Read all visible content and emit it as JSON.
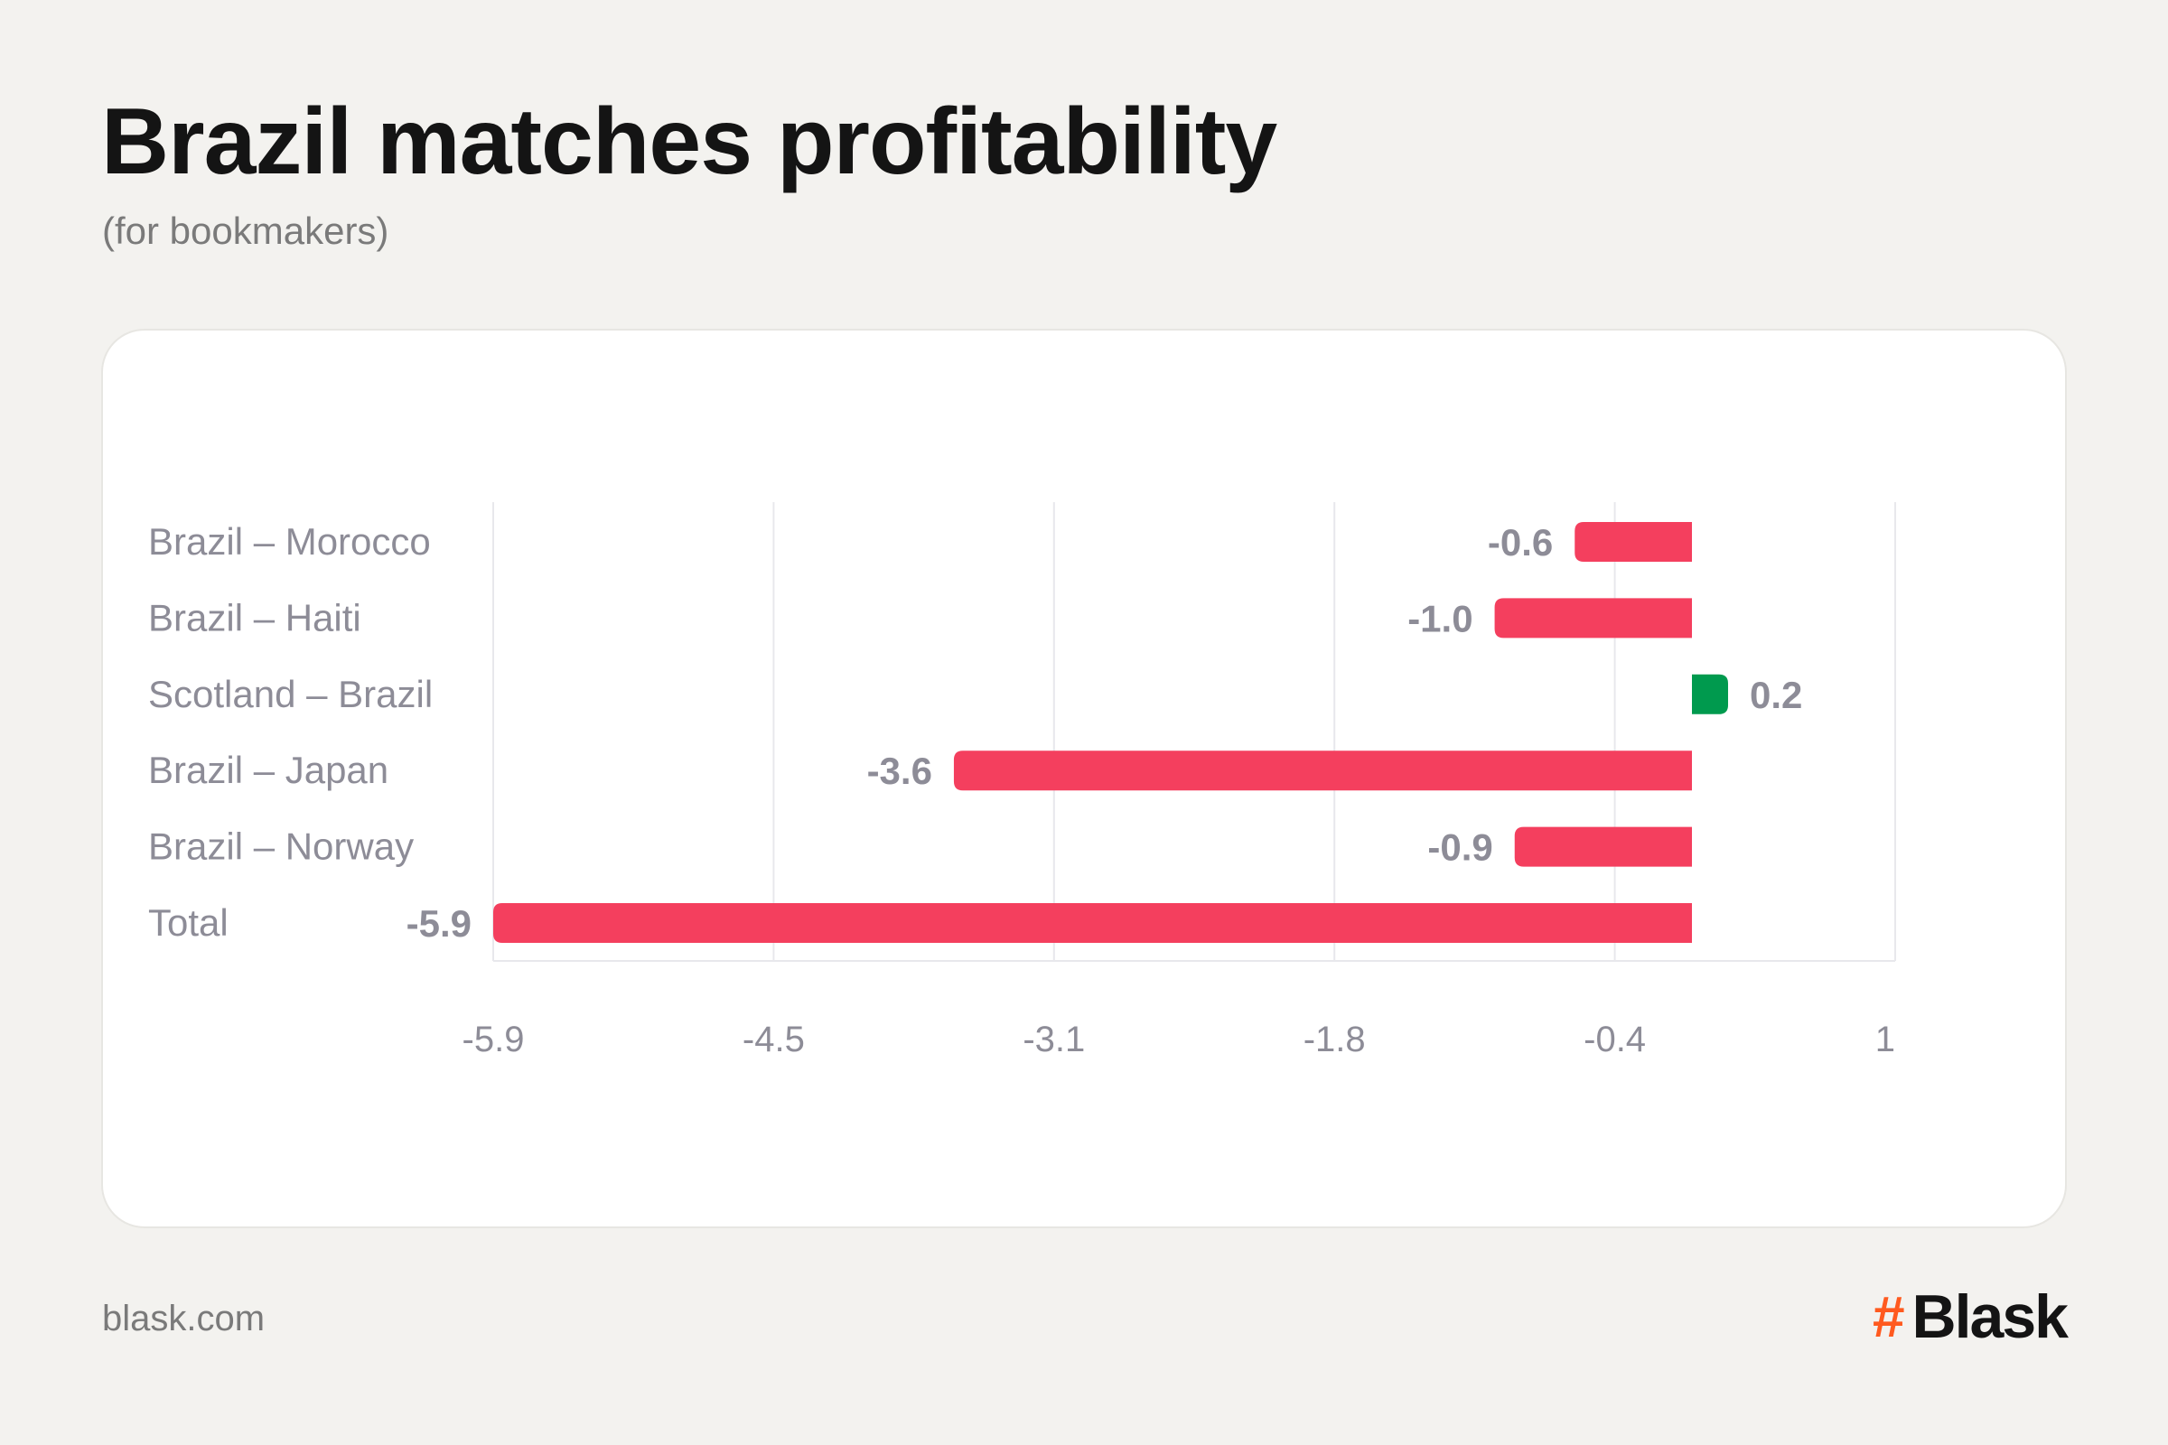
{
  "header": {
    "title": "Brazil matches profitability",
    "subtitle": "(for bookmakers)"
  },
  "footer": {
    "url": "blask.com",
    "brand_mark": "#",
    "brand_name": "Blask"
  },
  "colors": {
    "positive": "#009a4e",
    "negative": "#f43f5e",
    "value_label": "#8d8c97",
    "category_label": "#8d8c97",
    "tick_label": "#8d8c97",
    "grid": "#e8e8ec",
    "brand_accent": "#ff5a1f"
  },
  "chart_data": {
    "type": "bar",
    "orientation": "horizontal",
    "categories": [
      "Brazil – Morocco",
      "Brazil – Haiti",
      "Scotland – Brazil",
      "Brazil – Japan",
      "Brazil – Norway",
      "Total"
    ],
    "values": [
      -0.6,
      -1.0,
      0.2,
      -3.6,
      -0.9,
      -5.9
    ],
    "value_labels": [
      "-0.6",
      "-1.0",
      "0.2",
      "-3.6",
      "-0.9",
      "-5.9"
    ],
    "x_ticks": [
      -5.9,
      -4.5,
      -3.1,
      -1.8,
      -0.4,
      1
    ],
    "x_tick_labels": [
      "-5.9",
      "-4.5",
      "-3.1",
      "-1.8",
      "-0.4",
      "1"
    ],
    "xlim": [
      -5.9,
      1
    ],
    "title": "Brazil matches profitability",
    "subtitle": "(for bookmakers)",
    "xlabel": "",
    "ylabel": "",
    "grid": true
  }
}
